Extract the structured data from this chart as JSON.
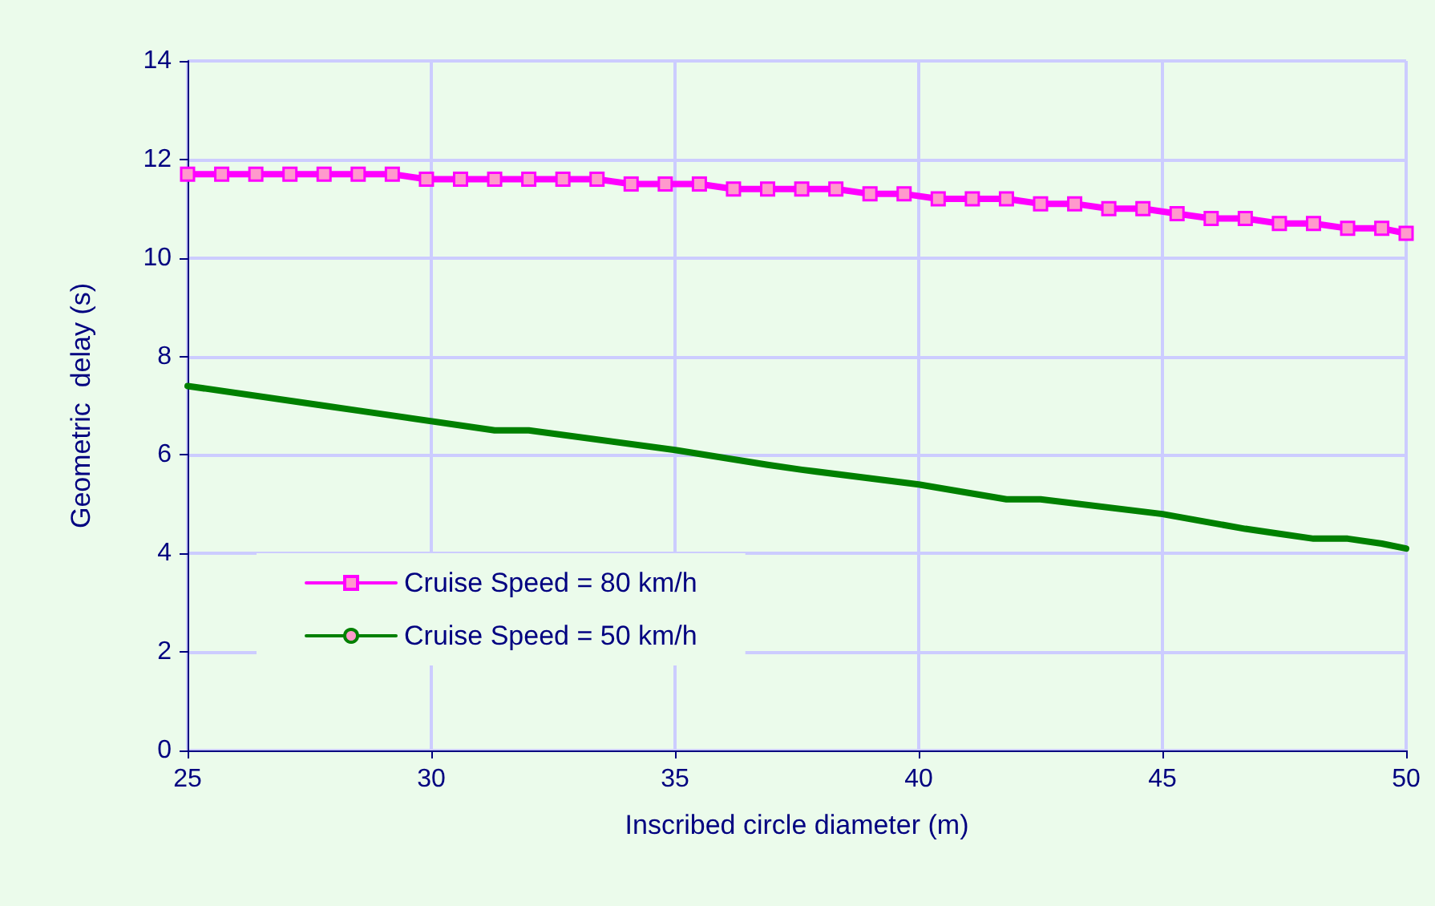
{
  "chart_data": {
    "type": "line",
    "xlabel": "Inscribed circle diameter (m)",
    "ylabel": "Geometric  delay (s)",
    "xlim": [
      25,
      50
    ],
    "xticks": [
      25,
      30,
      35,
      40,
      45,
      50
    ],
    "ylim": [
      0,
      14
    ],
    "yticks": [
      0,
      2,
      4,
      6,
      8,
      10,
      12,
      14
    ],
    "grid": true,
    "legend": "bottom left",
    "line_style": "solid",
    "series": [
      {
        "name": "Cruise Speed = 80 km/h",
        "color": "#ff00ff",
        "marker": "square",
        "x": [
          25,
          25.7,
          26.4,
          27.1,
          27.8,
          28.5,
          29.2,
          29.9,
          30.6,
          31.3,
          32,
          32.7,
          33.4,
          34.1,
          34.8,
          35.5,
          36.2,
          36.9,
          37.6,
          38.3,
          39,
          39.7,
          40.4,
          41.1,
          41.8,
          42.5,
          43.2,
          43.9,
          44.6,
          45.3,
          46,
          46.7,
          47.4,
          48.1,
          48.8,
          49.5,
          50
        ],
        "values": [
          11.7,
          11.7,
          11.7,
          11.7,
          11.7,
          11.7,
          11.7,
          11.6,
          11.6,
          11.6,
          11.6,
          11.6,
          11.6,
          11.5,
          11.5,
          11.5,
          11.4,
          11.4,
          11.4,
          11.4,
          11.3,
          11.3,
          11.2,
          11.2,
          11.2,
          11.1,
          11.1,
          11.0,
          11.0,
          10.9,
          10.8,
          10.8,
          10.7,
          10.7,
          10.6,
          10.6,
          10.5
        ]
      },
      {
        "name": "Cruise Speed = 50 km/h",
        "color": "#008000",
        "marker": "none",
        "x": [
          25,
          27.8,
          28.5,
          31.3,
          32,
          35,
          36.9,
          37.6,
          40,
          41.8,
          42.5,
          45,
          46.7,
          47.4,
          48.1,
          48.8,
          49.5,
          50
        ],
        "values": [
          7.4,
          7.0,
          6.9,
          6.5,
          6.5,
          6.1,
          5.8,
          5.7,
          5.4,
          5.1,
          5.1,
          4.8,
          4.5,
          4.4,
          4.3,
          4.3,
          4.2,
          4.1
        ]
      }
    ]
  }
}
